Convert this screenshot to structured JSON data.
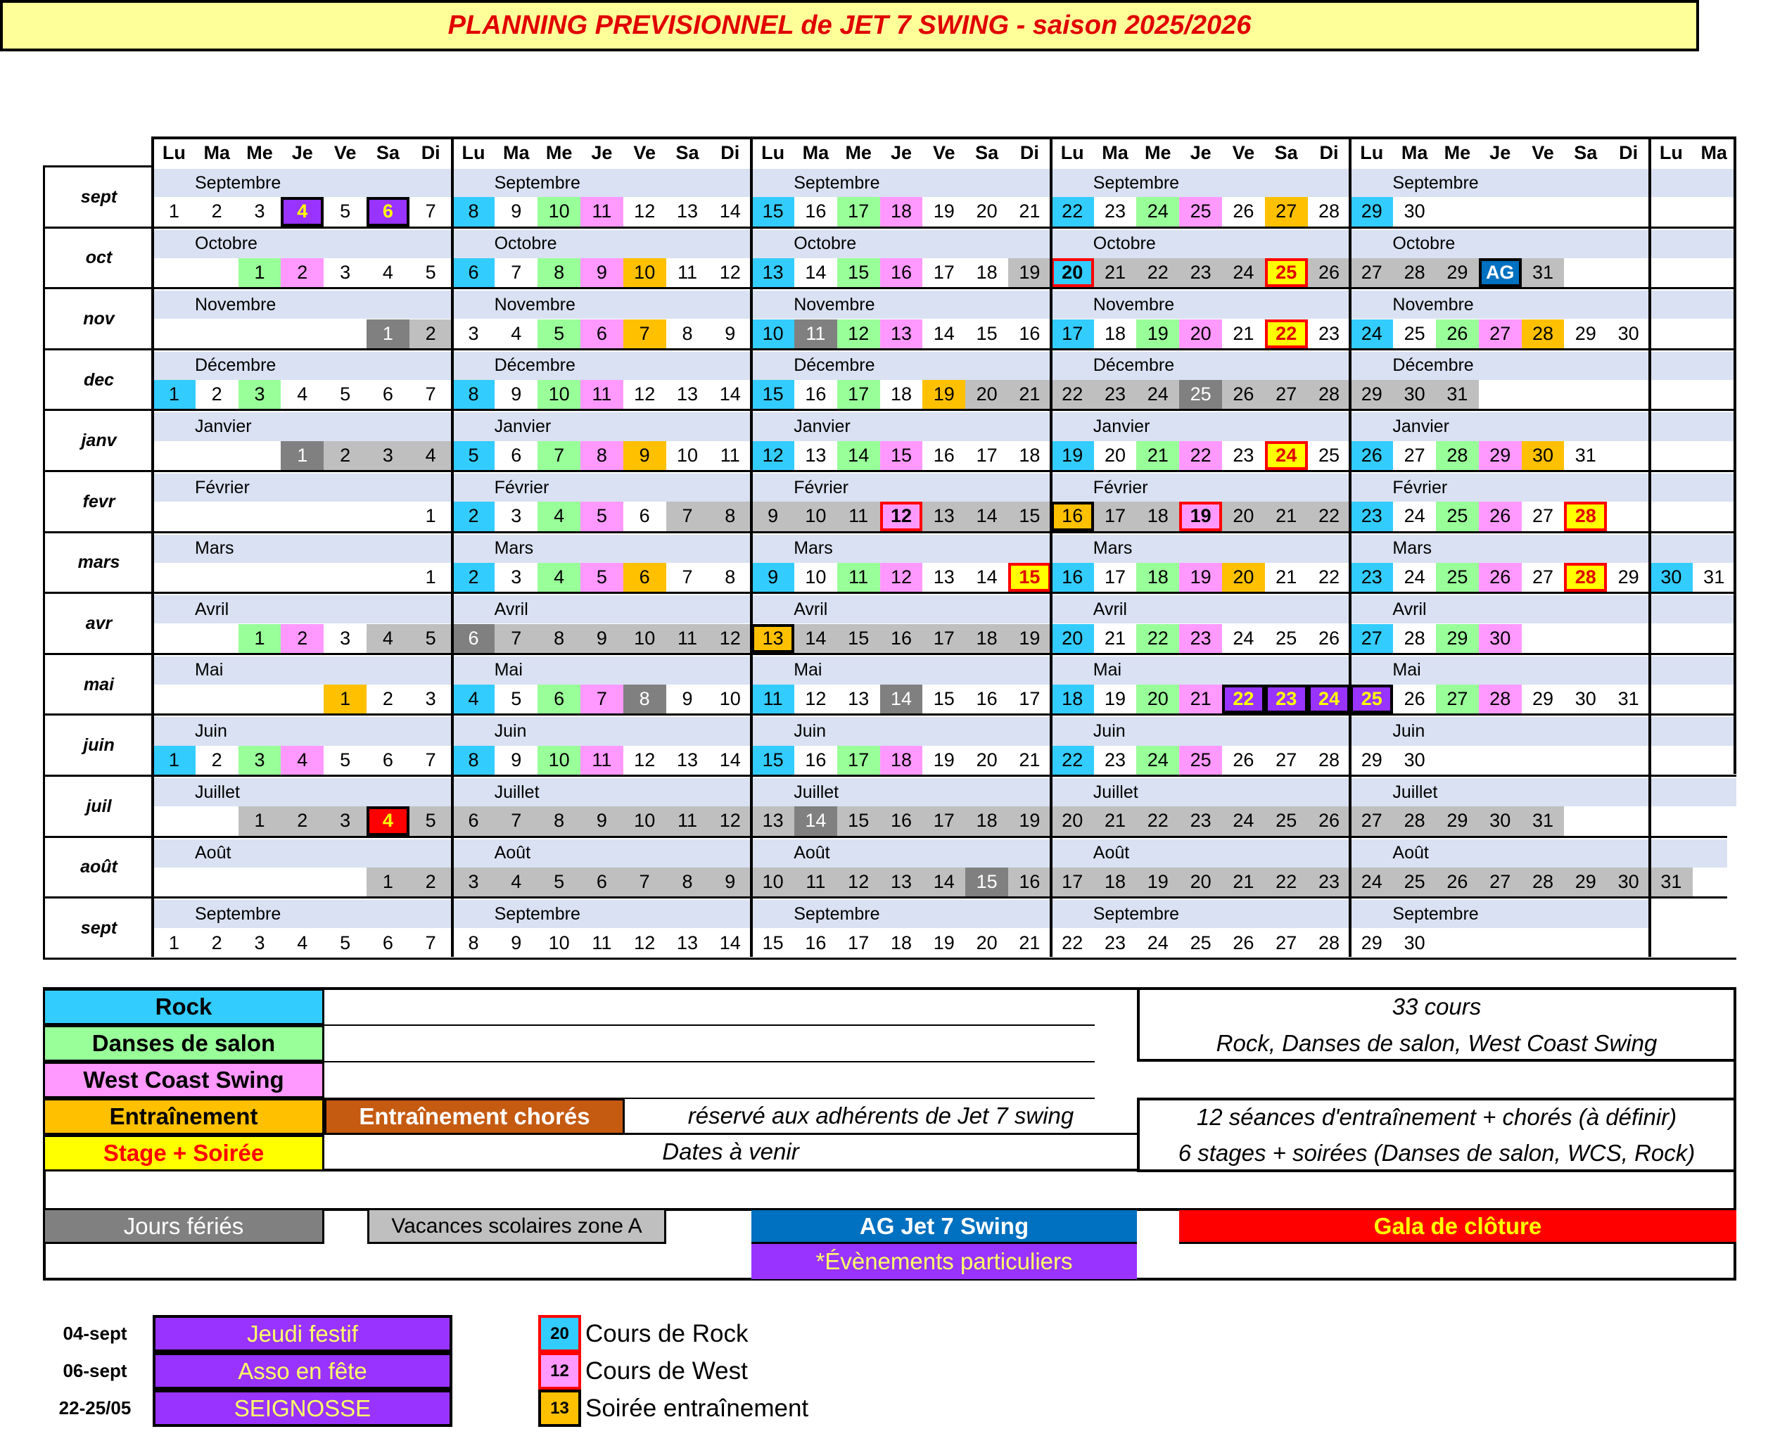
{
  "title": "PLANNING PREVISIONNEL de  JET 7 SWING -  saison 2025/2026",
  "weekdays": [
    "Lu",
    "Ma",
    "Me",
    "Je",
    "Ve",
    "Sa",
    "Di"
  ],
  "extra_weekdays": [
    "Lu",
    "Ma"
  ],
  "colors": {
    "r": "#33ccff",
    "s": "#99ff99",
    "w": "#ff99ff",
    "e": "#ffc000",
    "y": "#ffff00",
    "f": "#808080",
    "v": "#bfbfbf",
    "p": "#9933ff",
    "g": "#ff0000",
    "ag": "#0070c0",
    "band": "#d9e1f2",
    "title_bg": "#ffff99",
    "title_text": "#e00000",
    "chores": "#c55a11"
  },
  "months": [
    {
      "row": "sept",
      "name": "Septembre",
      "cells": [
        "1",
        "2",
        "3",
        "4|pB",
        "5",
        "6|pB",
        "7",
        "8|r",
        "9",
        "10|s",
        "11|w",
        "12",
        "13",
        "14",
        "15|r",
        "16",
        "17|s",
        "18|w",
        "19",
        "20",
        "21",
        "22|r",
        "23",
        "24|s",
        "25|w",
        "26",
        "27|e",
        "28",
        "29|r",
        "30",
        "",
        "",
        "",
        "",
        "",
        "",
        ""
      ]
    },
    {
      "row": "oct",
      "name": "Octobre",
      "cells": [
        "",
        "",
        "1|s",
        "2|w",
        "3",
        "4",
        "5",
        "6|r",
        "7",
        "8|s",
        "9|w",
        "10|e",
        "11",
        "12",
        "13|r",
        "14",
        "15|s",
        "16|w",
        "17",
        "18",
        "19|v",
        "20|rR",
        "21|v",
        "22|v",
        "23|v",
        "24|v",
        "25|yR",
        "26|v",
        "27|v",
        "28|v",
        "29|v",
        "AG|agB",
        "31|v",
        "",
        "",
        "",
        ""
      ]
    },
    {
      "row": "nov",
      "name": "Novembre",
      "cells": [
        "",
        "",
        "",
        "",
        "",
        "1|f",
        "2|v",
        "3",
        "4",
        "5|s",
        "6|w",
        "7|e",
        "8",
        "9",
        "10|r",
        "11|f",
        "12|s",
        "13|w",
        "14",
        "15",
        "16",
        "17|r",
        "18",
        "19|s",
        "20|w",
        "21",
        "22|yR",
        "23",
        "24|r",
        "25",
        "26|s",
        "27|w",
        "28|e",
        "29",
        "30",
        "",
        ""
      ]
    },
    {
      "row": "dec",
      "name": "Décembre",
      "cells": [
        "1|r",
        "2",
        "3|s",
        "4",
        "5",
        "6",
        "7",
        "8|r",
        "9",
        "10|s",
        "11|w",
        "12",
        "13",
        "14",
        "15|r",
        "16",
        "17|s",
        "18",
        "19|e",
        "20|v",
        "21|v",
        "22|v",
        "23|v",
        "24|v",
        "25|f",
        "26|v",
        "27|v",
        "28|v",
        "29|v",
        "30|v",
        "31|v",
        "",
        "",
        "",
        "",
        "",
        ""
      ]
    },
    {
      "row": "janv",
      "name": "Janvier",
      "cells": [
        "",
        "",
        "",
        "1|f",
        "2|v",
        "3|v",
        "4|v",
        "5|r",
        "6",
        "7|s",
        "8|w",
        "9|e",
        "10",
        "11",
        "12|r",
        "13",
        "14|s",
        "15|w",
        "16",
        "17",
        "18",
        "19|r",
        "20",
        "21|s",
        "22|w",
        "23",
        "24|yR",
        "25",
        "26|r",
        "27",
        "28|s",
        "29|w",
        "30|e",
        "31",
        "",
        "",
        ""
      ]
    },
    {
      "row": "fevr",
      "name": "Février",
      "cells": [
        "",
        "",
        "",
        "",
        "",
        "",
        "1",
        "2|r",
        "3",
        "4|s",
        "5|w",
        "6",
        "7|v",
        "8|v",
        "9|v",
        "10|v",
        "11|v",
        "12|wR",
        "13|v",
        "14|v",
        "15|v",
        "16|eB",
        "17|v",
        "18|v",
        "19|wR",
        "20|v",
        "21|v",
        "22|v",
        "23|r",
        "24",
        "25|s",
        "26|w",
        "27",
        "28|yR",
        "",
        "",
        ""
      ]
    },
    {
      "row": "mars",
      "name": "Mars",
      "cells": [
        "",
        "",
        "",
        "",
        "",
        "",
        "1",
        "2|r",
        "3",
        "4|s",
        "5|w",
        "6|e",
        "7",
        "8",
        "9|r",
        "10",
        "11|s",
        "12|w",
        "13",
        "14",
        "15|yR",
        "16|r",
        "17",
        "18|s",
        "19|w",
        "20|e",
        "21",
        "22",
        "23|r",
        "24",
        "25|s",
        "26|w",
        "27",
        "28|yR",
        "29",
        "30|r",
        "31"
      ]
    },
    {
      "row": "avr",
      "name": "Avril",
      "cells": [
        "",
        "",
        "1|s",
        "2|w",
        "3",
        "4|v",
        "5|v",
        "6|f",
        "7|v",
        "8|v",
        "9|v",
        "10|v",
        "11|v",
        "12|v",
        "13|eB",
        "14|v",
        "15|v",
        "16|v",
        "17|v",
        "18|v",
        "19|v",
        "20|r",
        "21",
        "22|s",
        "23|w",
        "24",
        "25",
        "26",
        "27|r",
        "28",
        "29|s",
        "30|w",
        "",
        "",
        "",
        "",
        ""
      ]
    },
    {
      "row": "mai",
      "name": "Mai",
      "cells": [
        "",
        "",
        "",
        "",
        "1|e",
        "2",
        "3",
        "4|r",
        "5",
        "6|s",
        "7|w",
        "8|f",
        "9",
        "10",
        "11|r",
        "12",
        "13",
        "14|f",
        "15",
        "16",
        "17",
        "18|r",
        "19",
        "20|s",
        "21|w",
        "22|pB",
        "23|pB",
        "24|pB",
        "25|pB",
        "26",
        "27|s",
        "28|w",
        "29",
        "30",
        "31",
        "",
        ""
      ]
    },
    {
      "row": "juin",
      "name": "Juin",
      "cells": [
        "1|r",
        "2",
        "3|s",
        "4|w",
        "5",
        "6",
        "7",
        "8|r",
        "9",
        "10|s",
        "11|w",
        "12",
        "13",
        "14",
        "15|r",
        "16",
        "17|s",
        "18|w",
        "19",
        "20",
        "21",
        "22|r",
        "23",
        "24|s",
        "25|w",
        "26",
        "27",
        "28",
        "29",
        "30",
        "",
        "",
        "",
        "",
        "",
        "",
        ""
      ]
    },
    {
      "row": "juil",
      "name": "Juillet",
      "cells": [
        "",
        "",
        "1|v",
        "2|v",
        "3|v",
        "4|gB",
        "5|v",
        "6|v",
        "7|v",
        "8|v",
        "9|v",
        "10|v",
        "11|v",
        "12|v",
        "13|v",
        "14|f",
        "15|v",
        "16|v",
        "17|v",
        "18|v",
        "19|v",
        "20|v",
        "21|v",
        "22|v",
        "23|v",
        "24|v",
        "25|v",
        "26|v",
        "27|v",
        "28|v",
        "29|v",
        "30|v",
        "31|v",
        "",
        "",
        "",
        ""
      ]
    },
    {
      "row": "août",
      "name": "Août",
      "cells": [
        "",
        "",
        "",
        "",
        "",
        "1|v",
        "2|v",
        "3|v",
        "4|v",
        "5|v",
        "6|v",
        "7|v",
        "8|v",
        "9|v",
        "10|v",
        "11|v",
        "12|v",
        "13|v",
        "14|v",
        "15|f",
        "16|v",
        "17|v",
        "18|v",
        "19|v",
        "20|v",
        "21|v",
        "22|v",
        "23|v",
        "24|v",
        "25|v",
        "26|v",
        "27|v",
        "28|v",
        "29|v",
        "30|v",
        "31|v",
        ""
      ]
    },
    {
      "row": "sept",
      "name": "Septembre",
      "cells": [
        "1",
        "2",
        "3",
        "4",
        "5",
        "6",
        "7",
        "8",
        "9",
        "10",
        "11",
        "12",
        "13",
        "14",
        "15",
        "16",
        "17",
        "18",
        "19",
        "20",
        "21",
        "22",
        "23",
        "24",
        "25",
        "26",
        "27",
        "28",
        "29",
        "30",
        "",
        "",
        "",
        "",
        "",
        "",
        ""
      ]
    }
  ],
  "legend": {
    "rock": "Rock",
    "salon": "Danses de salon",
    "wcs": "West Coast Swing",
    "entrainement": "Entraînement",
    "stage": "Stage + Soirée",
    "chores": "Entraînement chorés",
    "reserve": "réservé aux adhérents de Jet 7 swing",
    "dates_venir": "Dates à venir",
    "cours_count": "33 cours",
    "cours_types": "Rock, Danses de salon, West Coast Swing",
    "seances": "12 séances d'entraînement + chorés (à définir)",
    "stages": "6 stages + soirées (Danses de salon, WCS, Rock)",
    "feries": "Jours fériés",
    "vacances": "Vacances scolaires zone A",
    "ag": "AG Jet 7 Swing",
    "gala": "Gala de clôture",
    "evenements": "*Évènements particuliers"
  },
  "events": [
    {
      "date": "04-sept",
      "label": "Jeudi festif"
    },
    {
      "date": "06-sept",
      "label": "Asso en fête"
    },
    {
      "date": "22-25/05",
      "label": "SEIGNOSSE"
    }
  ],
  "samples": [
    {
      "day": "20",
      "label": "Cours de Rock",
      "color": "#33ccff",
      "border": "#ff0000"
    },
    {
      "day": "12",
      "label": "Cours de West",
      "color": "#ff99ff",
      "border": "#ff0000"
    },
    {
      "day": "13",
      "label": "Soirée entraînement",
      "color": "#ffc000",
      "border": "#000000"
    }
  ]
}
